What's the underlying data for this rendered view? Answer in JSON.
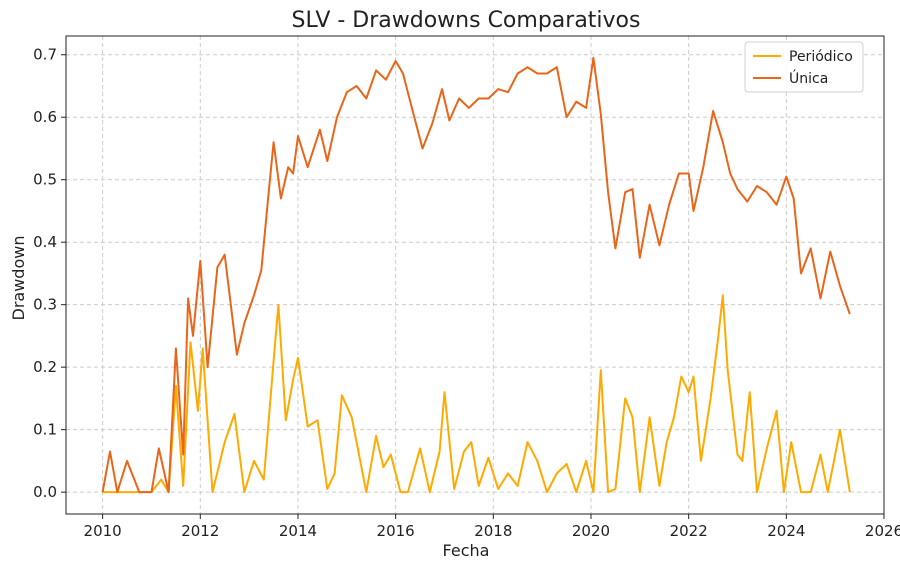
{
  "chart_data": {
    "type": "line",
    "title": "SLV - Drawdowns Comparativos",
    "xlabel": "Fecha",
    "ylabel": "Drawdown",
    "xlim": [
      2009.25,
      2026.0
    ],
    "ylim": [
      -0.035,
      0.73
    ],
    "x_ticks": [
      2010,
      2012,
      2014,
      2016,
      2018,
      2020,
      2022,
      2024,
      2026
    ],
    "x_tick_labels": [
      "2010",
      "2012",
      "2014",
      "2016",
      "2018",
      "2020",
      "2022",
      "2024",
      "2026"
    ],
    "y_ticks": [
      0.0,
      0.1,
      0.2,
      0.3,
      0.4,
      0.5,
      0.6,
      0.7
    ],
    "y_tick_labels": [
      "0.0",
      "0.1",
      "0.2",
      "0.3",
      "0.4",
      "0.5",
      "0.6",
      "0.7"
    ],
    "grid": true,
    "legend_position": "top-right",
    "series": [
      {
        "name": "Periódico",
        "color": "#ffaa00",
        "x": [
          2010.0,
          2010.25,
          2010.5,
          2010.75,
          2011.0,
          2011.2,
          2011.35,
          2011.5,
          2011.65,
          2011.8,
          2011.95,
          2012.05,
          2012.25,
          2012.5,
          2012.7,
          2012.9,
          2013.1,
          2013.3,
          2013.5,
          2013.6,
          2013.75,
          2013.9,
          2014.0,
          2014.2,
          2014.4,
          2014.6,
          2014.75,
          2014.9,
          2015.1,
          2015.25,
          2015.4,
          2015.6,
          2015.75,
          2015.9,
          2016.1,
          2016.25,
          2016.5,
          2016.7,
          2016.9,
          2017.0,
          2017.2,
          2017.4,
          2017.55,
          2017.7,
          2017.9,
          2018.1,
          2018.3,
          2018.5,
          2018.7,
          2018.9,
          2019.1,
          2019.3,
          2019.5,
          2019.7,
          2019.9,
          2020.05,
          2020.2,
          2020.35,
          2020.5,
          2020.7,
          2020.85,
          2021.0,
          2021.2,
          2021.4,
          2021.55,
          2021.7,
          2021.85,
          2022.0,
          2022.1,
          2022.25,
          2022.45,
          2022.6,
          2022.7,
          2022.8,
          2023.0,
          2023.1,
          2023.25,
          2023.4,
          2023.6,
          2023.8,
          2023.95,
          2024.1,
          2024.3,
          2024.5,
          2024.7,
          2024.85,
          2025.0,
          2025.1,
          2025.3
        ],
        "values": [
          0.0,
          0.0,
          0.0,
          0.0,
          0.0,
          0.02,
          0.0,
          0.17,
          0.01,
          0.24,
          0.13,
          0.23,
          0.0,
          0.08,
          0.125,
          0.0,
          0.05,
          0.02,
          0.21,
          0.3,
          0.115,
          0.18,
          0.215,
          0.105,
          0.115,
          0.005,
          0.03,
          0.155,
          0.12,
          0.06,
          0.0,
          0.09,
          0.04,
          0.06,
          0.0,
          0.0,
          0.07,
          0.0,
          0.065,
          0.16,
          0.005,
          0.065,
          0.08,
          0.01,
          0.055,
          0.005,
          0.03,
          0.01,
          0.08,
          0.05,
          0.0,
          0.03,
          0.045,
          0.0,
          0.05,
          0.0,
          0.195,
          0.0,
          0.005,
          0.15,
          0.12,
          0.0,
          0.12,
          0.01,
          0.08,
          0.12,
          0.185,
          0.16,
          0.185,
          0.05,
          0.15,
          0.245,
          0.315,
          0.195,
          0.06,
          0.05,
          0.16,
          0.0,
          0.07,
          0.13,
          0.0,
          0.08,
          0.0,
          0.0,
          0.06,
          0.0,
          0.06,
          0.1,
          0.0
        ]
      },
      {
        "name": "Única",
        "color": "#e8651a",
        "x": [
          2010.0,
          2010.15,
          2010.3,
          2010.5,
          2010.75,
          2011.0,
          2011.15,
          2011.35,
          2011.5,
          2011.65,
          2011.75,
          2011.85,
          2012.0,
          2012.15,
          2012.35,
          2012.5,
          2012.75,
          2012.9,
          2013.1,
          2013.25,
          2013.4,
          2013.5,
          2013.65,
          2013.8,
          2013.9,
          2014.0,
          2014.2,
          2014.45,
          2014.6,
          2014.8,
          2015.0,
          2015.2,
          2015.4,
          2015.6,
          2015.8,
          2016.0,
          2016.15,
          2016.35,
          2016.55,
          2016.75,
          2016.95,
          2017.1,
          2017.3,
          2017.5,
          2017.7,
          2017.9,
          2018.1,
          2018.3,
          2018.5,
          2018.7,
          2018.9,
          2019.1,
          2019.3,
          2019.5,
          2019.7,
          2019.9,
          2020.05,
          2020.2,
          2020.35,
          2020.5,
          2020.7,
          2020.85,
          2021.0,
          2021.2,
          2021.4,
          2021.6,
          2021.8,
          2022.0,
          2022.1,
          2022.3,
          2022.5,
          2022.7,
          2022.85,
          2023.0,
          2023.2,
          2023.4,
          2023.6,
          2023.8,
          2024.0,
          2024.15,
          2024.3,
          2024.5,
          2024.7,
          2024.9,
          2025.1,
          2025.3
        ],
        "values": [
          0.0,
          0.065,
          0.0,
          0.05,
          0.0,
          0.0,
          0.07,
          0.0,
          0.23,
          0.06,
          0.31,
          0.25,
          0.37,
          0.2,
          0.36,
          0.38,
          0.22,
          0.27,
          0.315,
          0.355,
          0.48,
          0.56,
          0.47,
          0.52,
          0.51,
          0.57,
          0.52,
          0.58,
          0.53,
          0.6,
          0.64,
          0.65,
          0.63,
          0.675,
          0.66,
          0.69,
          0.67,
          0.61,
          0.55,
          0.59,
          0.645,
          0.595,
          0.63,
          0.615,
          0.63,
          0.63,
          0.645,
          0.64,
          0.67,
          0.68,
          0.67,
          0.67,
          0.68,
          0.6,
          0.625,
          0.615,
          0.695,
          0.605,
          0.48,
          0.39,
          0.48,
          0.485,
          0.375,
          0.46,
          0.395,
          0.46,
          0.51,
          0.51,
          0.45,
          0.52,
          0.61,
          0.56,
          0.51,
          0.485,
          0.465,
          0.49,
          0.48,
          0.46,
          0.505,
          0.47,
          0.35,
          0.39,
          0.31,
          0.385,
          0.33,
          0.285
        ]
      }
    ]
  }
}
